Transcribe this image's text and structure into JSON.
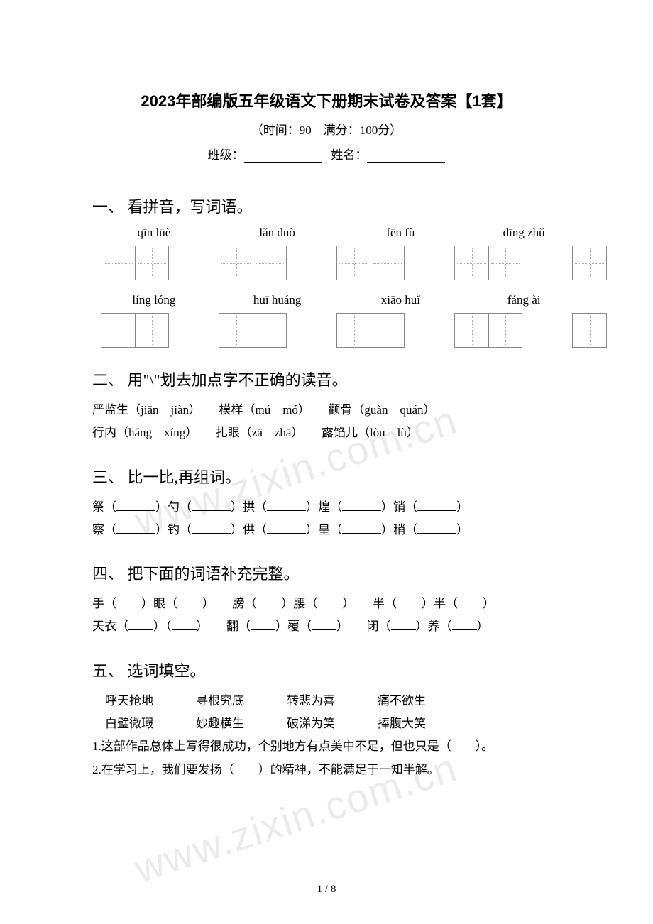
{
  "title": "2023年部编版五年级语文下册期末试卷及答案【1套】",
  "subtitle": "（时间：90　满分：100分）",
  "class_label": "班级：",
  "name_label": "姓名：",
  "section1": {
    "heading": "一、 看拼音，写词语。",
    "row1": [
      "qīn lüè",
      "lǎn duò",
      "fēn fù",
      "dīng zhǔ"
    ],
    "row2": [
      "líng lóng",
      "huī huáng",
      "xiāo huǐ",
      "fáng  ài"
    ]
  },
  "section2": {
    "heading": "二、 用\"\\\"划去加点字不正确的读音。",
    "line1": "严监生（jiān　jiàn）　　模样（mú　mó）　　颧骨（guàn　quán）",
    "line2": "行内（háng　xíng）　　扎眼（zā　zhā）　　露馅儿（lòu　lù）"
  },
  "section3": {
    "heading": "三、 比一比,再组词。",
    "row1": [
      "祭",
      "勺",
      "拱",
      "煌",
      "销"
    ],
    "row2": [
      "察",
      "钓",
      "供",
      "皇",
      "稍"
    ]
  },
  "section4": {
    "heading": "四、 把下面的词语补充完整。",
    "row1": [
      [
        "手",
        "眼"
      ],
      [
        "膀",
        "腰"
      ],
      [
        "半",
        "半"
      ]
    ],
    "row2": [
      [
        "天衣",
        ""
      ],
      [
        "翻",
        "覆"
      ],
      [
        "闭",
        "养"
      ]
    ]
  },
  "section5": {
    "heading": "五、 选词填空。",
    "words1": [
      "呼天抢地",
      "寻根究底",
      "转悲为喜",
      "痛不欲生"
    ],
    "words2": [
      "白璧微瑕",
      "妙趣横生",
      "破涕为笑",
      "捧腹大笑"
    ],
    "q1": "1.这部作品总体上写得很成功，个别地方有点美中不足，但也只是（　　）。",
    "q2": "2.在学习上，我们要发扬（　　）的精神，不能满足于一知半解。"
  },
  "watermark": "www.zixin.com.cn",
  "page_num": "1 / 8"
}
